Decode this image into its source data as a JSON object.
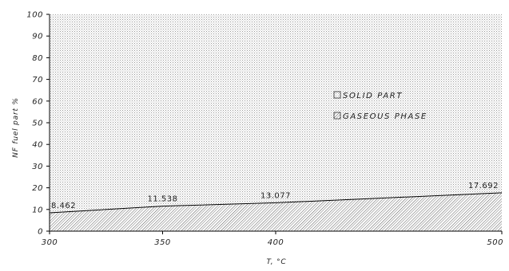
{
  "chart_data": {
    "type": "area",
    "stacked": true,
    "x": [
      300,
      350,
      400,
      500
    ],
    "series": [
      {
        "name": "GASEOUS PHASE",
        "values": [
          8.462,
          11.538,
          13.077,
          17.692
        ],
        "pattern": "diagonal-hatch"
      },
      {
        "name": "SOLID PART",
        "values": [
          91.538,
          88.462,
          86.923,
          82.308
        ],
        "pattern": "dots"
      }
    ],
    "data_labels": [
      "8.462",
      "11.538",
      "13.077",
      "17.692"
    ],
    "x_ticks": [
      "300",
      "350",
      "400",
      "500"
    ],
    "y_ticks": [
      "0",
      "10",
      "20",
      "30",
      "40",
      "50",
      "60",
      "70",
      "80",
      "90",
      "100"
    ],
    "xlabel": "T, °C",
    "ylabel": "NF fuel part %",
    "xlim": [
      300,
      500
    ],
    "ylim": [
      0,
      100
    ],
    "grid": false,
    "legend_position": "center-right",
    "legend": [
      {
        "label": "SOLID PART",
        "pattern": "dots"
      },
      {
        "label": "GASEOUS PHASE",
        "pattern": "diagonal-hatch"
      }
    ],
    "colors": {
      "line": "#000000",
      "fill_solid": "#d9d9d9",
      "fill_gas": "#ffffff",
      "hatch": "#555555"
    }
  }
}
